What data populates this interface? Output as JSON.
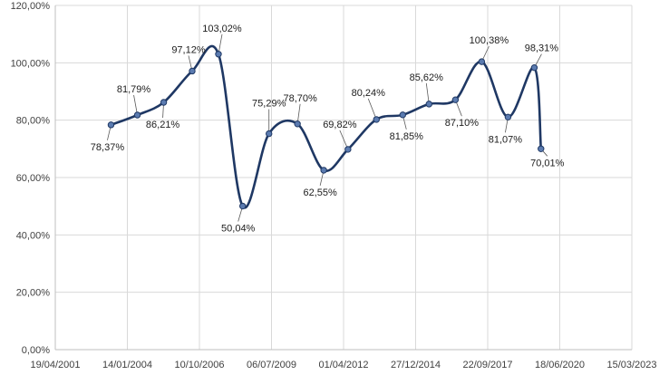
{
  "chart_data": {
    "type": "line",
    "title": "",
    "xlabel": "",
    "ylabel": "",
    "ylim": [
      0,
      120
    ],
    "y_ticks": [
      "0,00%",
      "20,00%",
      "40,00%",
      "60,00%",
      "80,00%",
      "100,00%",
      "120,00%"
    ],
    "x_ticks": [
      "19/04/2001",
      "14/01/2004",
      "10/10/2006",
      "06/07/2009",
      "01/04/2012",
      "27/12/2014",
      "22/09/2017",
      "18/06/2020",
      "15/03/2023"
    ],
    "grid": "vertical and horizontal",
    "legend": "none",
    "line_color": "#1f3864",
    "marker_color": "#5b7bb0",
    "points": [
      {
        "date": "2003-06-01",
        "y": 78.37,
        "label": "78,37%"
      },
      {
        "date": "2004-06-01",
        "y": 81.79,
        "label": "81,79%"
      },
      {
        "date": "2005-06-01",
        "y": 86.21,
        "label": "86,21%"
      },
      {
        "date": "2006-07-01",
        "y": 97.12,
        "label": "97,12%"
      },
      {
        "date": "2007-07-01",
        "y": 103.02,
        "label": "103,02%"
      },
      {
        "date": "2008-06-01",
        "y": 50.04,
        "label": "50,04%"
      },
      {
        "date": "2009-06-01",
        "y": 75.29,
        "label": "75,29%"
      },
      {
        "date": "2010-07-01",
        "y": 78.7,
        "label": "78,70%"
      },
      {
        "date": "2011-07-01",
        "y": 62.55,
        "label": "62,55%"
      },
      {
        "date": "2012-06-01",
        "y": 69.82,
        "label": "69,82%"
      },
      {
        "date": "2013-07-01",
        "y": 80.24,
        "label": "80,24%"
      },
      {
        "date": "2014-07-01",
        "y": 81.85,
        "label": "81,85%"
      },
      {
        "date": "2015-07-01",
        "y": 85.62,
        "label": "85,62%"
      },
      {
        "date": "2016-07-01",
        "y": 87.1,
        "label": "87,10%"
      },
      {
        "date": "2017-07-01",
        "y": 100.38,
        "label": "100,38%"
      },
      {
        "date": "2018-07-01",
        "y": 81.07,
        "label": "81,07%"
      },
      {
        "date": "2019-07-01",
        "y": 98.31,
        "label": "98,31%"
      },
      {
        "date": "2019-10-01",
        "y": 70.01,
        "label": "70,01%"
      }
    ]
  }
}
